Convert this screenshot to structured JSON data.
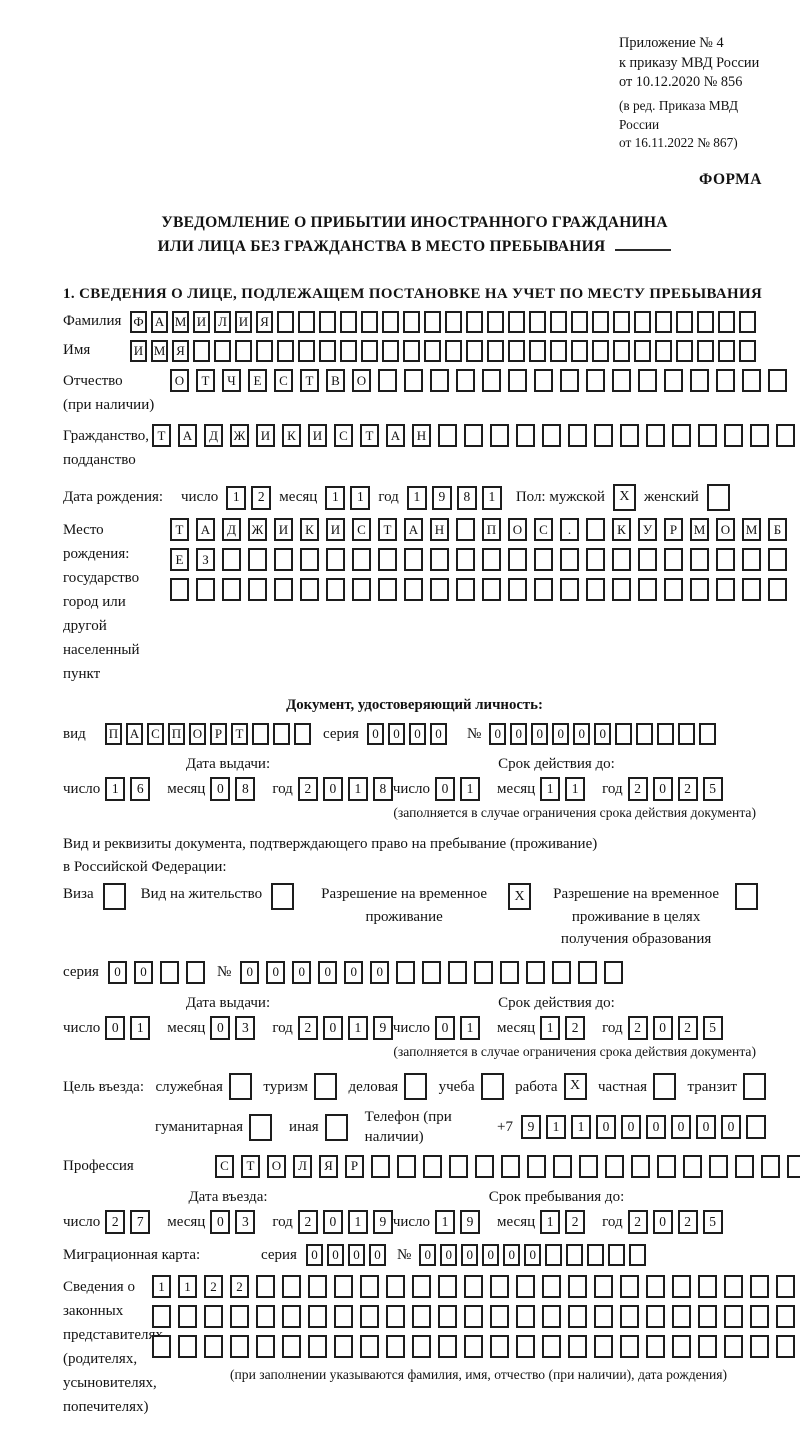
{
  "header": {
    "annex": [
      "Приложение № 4",
      "к приказу МВД России",
      "от 10.12.2020 № 856"
    ],
    "annex_note": [
      "(в ред. Приказа МВД России",
      "от 16.11.2022 № 867)"
    ],
    "form_label": "ФОРМА"
  },
  "title": {
    "line1": "УВЕДОМЛЕНИЕ О ПРИБЫТИИ ИНОСТРАННОГО ГРАЖДАНИНА",
    "line2": "ИЛИ ЛИЦА БЕЗ ГРАЖДАНСТВА В МЕСТО ПРЕБЫВАНИЯ",
    "section1": "1. СВЕДЕНИЯ О ЛИЦЕ, ПОДЛЕЖАЩЕМ ПОСТАНОВКЕ НА УЧЕТ ПО МЕСТУ ПРЕБЫВАНИЯ"
  },
  "labels": {
    "day": "число",
    "month": "месяц",
    "year": "год",
    "series": "серия",
    "number": "№"
  },
  "person": {
    "surname": {
      "label": "Фамилия",
      "value": "ФАМИЛИЯ"
    },
    "name": {
      "label": "Имя",
      "value": "ИМЯ"
    },
    "patronymic": {
      "label": "Отчество",
      "label2": "(при наличии)",
      "value": "ОТЧЕСТВО"
    },
    "citizenship": {
      "label": "Гражданство,",
      "label2": "подданство",
      "value": "ТАДЖИКИСТАН"
    }
  },
  "birth": {
    "label": "Дата рождения:",
    "day": "12",
    "month": "11",
    "year": "1981",
    "sex_label": "Пол: мужской",
    "male": "X",
    "female_label": "женский",
    "female": ""
  },
  "birth_place": {
    "label1": "Место рождения:",
    "label2": "государство",
    "label3": "город или другой",
    "label4": "населенный пункт",
    "row1": "ТАДЖИКИСТАН ПОС. КУРМОМБ",
    "row2": "ЕЗ",
    "row3": ""
  },
  "identity_doc": {
    "heading": "Документ, удостоверяющий личность:",
    "kind_label": "вид",
    "kind": "ПАСПОРТ",
    "series": "0000",
    "number": "000000",
    "issue": {
      "heading": "Дата выдачи:",
      "day": "16",
      "month": "08",
      "year": "2018"
    },
    "valid": {
      "heading": "Срок действия до:",
      "day": "01",
      "month": "11",
      "year": "2025"
    },
    "note": "(заполняется в случае ограничения срока действия документа)"
  },
  "residence_doc": {
    "line1": "Вид и реквизиты документа, подтверждающего право на пребывание (проживание)",
    "line2": "в Российской Федерации:",
    "options": [
      {
        "label": "Виза",
        "checked": ""
      },
      {
        "label": "Вид на жительство",
        "checked": ""
      },
      {
        "label": "Разрешение на временное проживание",
        "checked": "X"
      },
      {
        "label": "Разрешение на временное проживание в целях получения образования",
        "checked": ""
      }
    ],
    "series": "00",
    "number": "000000",
    "issue": {
      "heading": "Дата выдачи:",
      "day": "01",
      "month": "03",
      "year": "2019"
    },
    "valid": {
      "heading": "Срок действия до:",
      "day": "01",
      "month": "12",
      "year": "2025"
    },
    "note": "(заполняется в случае ограничения срока действия документа)"
  },
  "purpose": {
    "label": "Цель въезда:",
    "options": [
      {
        "label": "служебная",
        "checked": ""
      },
      {
        "label": "туризм",
        "checked": ""
      },
      {
        "label": "деловая",
        "checked": ""
      },
      {
        "label": "учеба",
        "checked": ""
      },
      {
        "label": "работа",
        "checked": "X"
      },
      {
        "label": "частная",
        "checked": ""
      },
      {
        "label": "транзит",
        "checked": ""
      },
      {
        "label": "гуманитарная",
        "checked": ""
      },
      {
        "label": "иная",
        "checked": ""
      }
    ],
    "phone_label": "Телефон (при наличии)",
    "phone_prefix": "+7",
    "phone": "911000000"
  },
  "profession": {
    "label": "Профессия",
    "value": "СТОЛЯР"
  },
  "entry": {
    "arrival": {
      "heading": "Дата въезда:",
      "day": "27",
      "month": "03",
      "year": "2019"
    },
    "stay": {
      "heading": "Срок пребывания до:",
      "day": "19",
      "month": "12",
      "year": "2025"
    }
  },
  "migration_card": {
    "label": "Миграционная карта:",
    "series": "0000",
    "number": "000000"
  },
  "legal_reps": {
    "labels": [
      "Сведения о",
      "законных",
      "представителях",
      "(родителях,",
      "усыновителях,",
      "попечителях)"
    ],
    "row1": "1122",
    "row2": "",
    "row3": "",
    "footnote": "(при заполнении указываются фамилия, имя, отчество (при наличии), дата рождения)"
  }
}
